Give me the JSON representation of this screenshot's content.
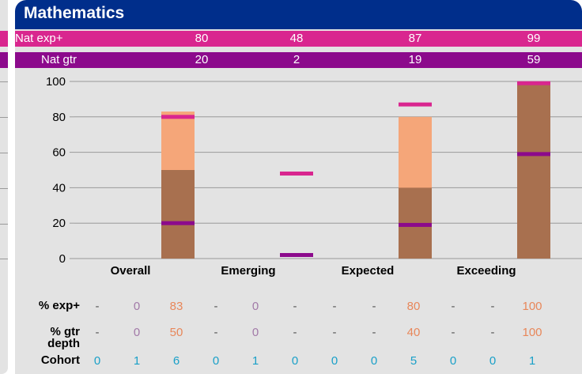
{
  "title": "Mathematics",
  "colors": {
    "title_bg": "#002e8b",
    "nat_exp": "#d9268f",
    "nat_gtr": "#8c0a8c",
    "bar_exp": "#f5a679",
    "bar_gtr": "#a8704f",
    "exp_text": "#e8875a",
    "gtr_text": "#a27aa8",
    "cohort_text": "#1aa0c8",
    "dash_text": "#555555"
  },
  "national": {
    "exp_label": "Nat exp+",
    "gtr_label": "Nat gtr",
    "exp_values": [
      "80",
      "48",
      "87",
      "99"
    ],
    "gtr_values": [
      "20",
      "2",
      "19",
      "59"
    ]
  },
  "chart_data": {
    "type": "bar",
    "title": "Mathematics",
    "categories": [
      "Overall",
      "Emerging",
      "Expected",
      "Exceeding"
    ],
    "ylim": [
      0,
      100
    ],
    "yticks": [
      "0",
      "20",
      "40",
      "60",
      "80",
      "100"
    ],
    "grid": true,
    "series": [
      {
        "name": "% exp+",
        "values": [
          83,
          0,
          80,
          100
        ]
      },
      {
        "name": "% gtr depth",
        "values": [
          50,
          0,
          40,
          100
        ]
      }
    ],
    "markers": [
      {
        "name": "Nat exp+",
        "values": [
          80,
          48,
          87,
          99
        ]
      },
      {
        "name": "Nat gtr",
        "values": [
          20,
          2,
          19,
          59
        ]
      }
    ]
  },
  "table": {
    "row_labels": [
      "% exp+",
      "% gtr depth",
      "Cohort"
    ],
    "rows": [
      [
        "-",
        "0",
        "83",
        "-",
        "0",
        "-",
        "-",
        "-",
        "80",
        "-",
        "-",
        "100"
      ],
      [
        "-",
        "0",
        "50",
        "-",
        "0",
        "-",
        "-",
        "-",
        "40",
        "-",
        "-",
        "100"
      ],
      [
        "0",
        "1",
        "6",
        "0",
        "1",
        "0",
        "0",
        "0",
        "5",
        "0",
        "0",
        "1"
      ]
    ]
  }
}
